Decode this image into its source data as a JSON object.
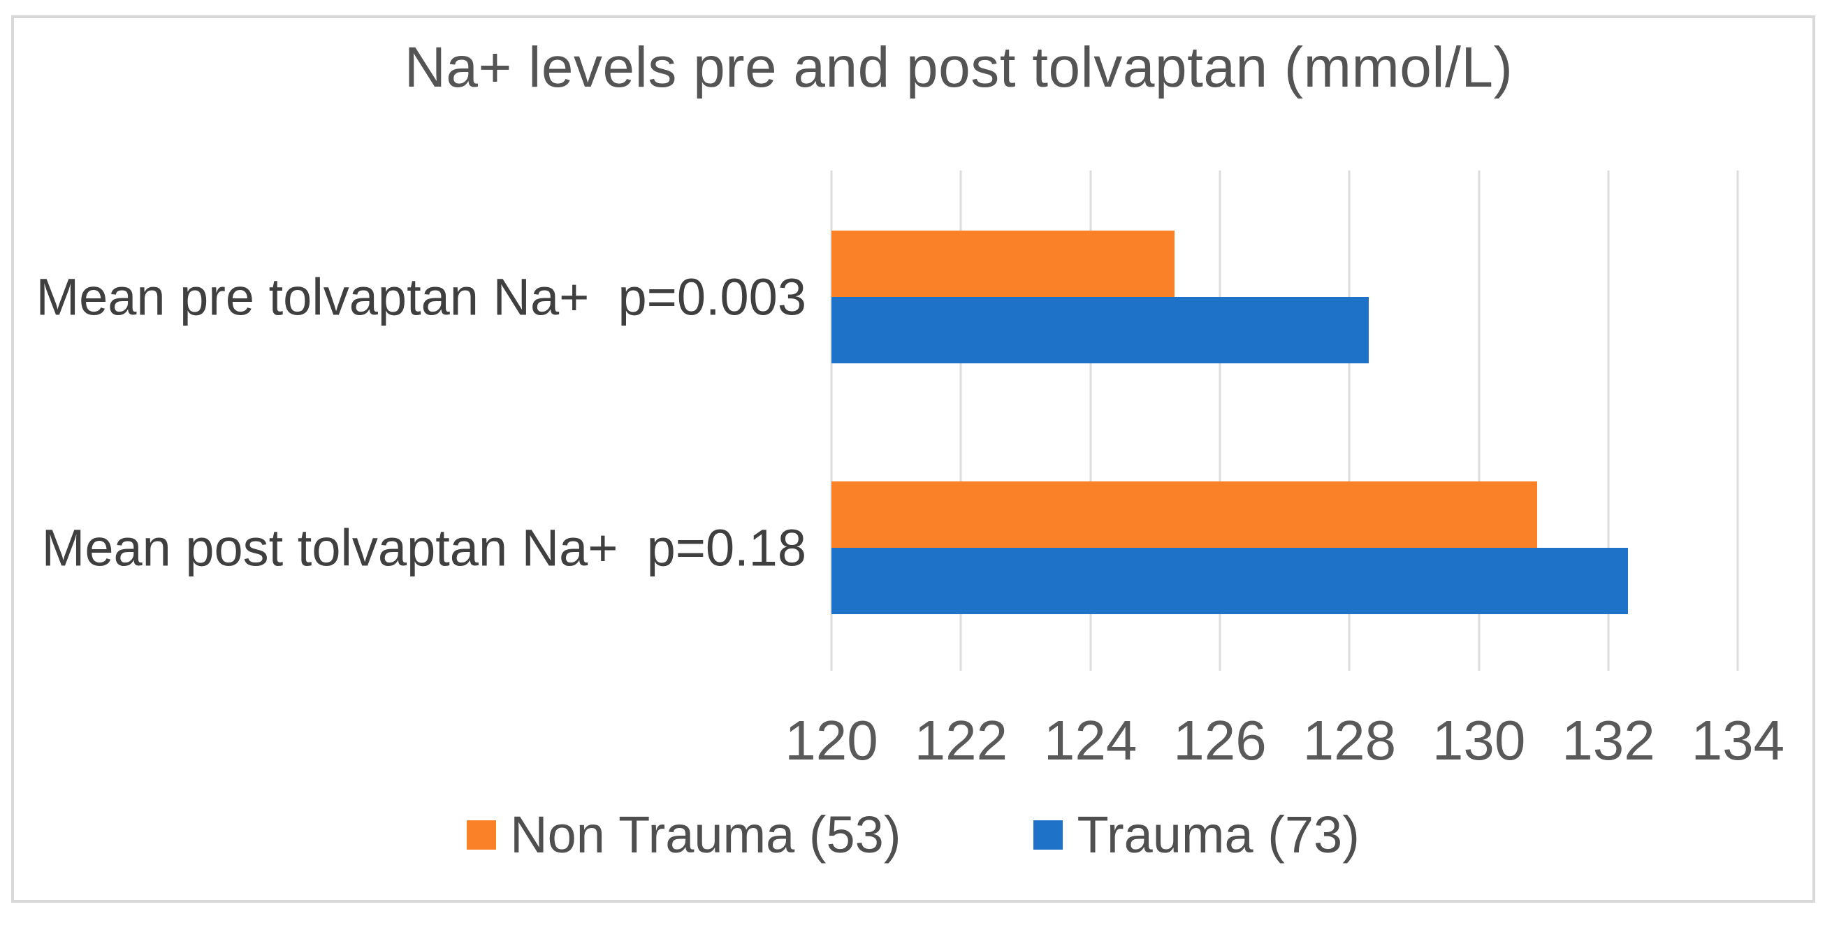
{
  "title": "Na+ levels pre and post tolvaptan (mmol/L)",
  "colors": {
    "non_trauma_orange": "#FA8128",
    "trauma_blue": "#1E73C8",
    "gridline": "#DCDCDC",
    "frame_border": "#D8D8D8",
    "title_text": "#545454",
    "tick_text": "#595959",
    "category_text": "#3F3F3F",
    "legend_text": "#4F4F4F"
  },
  "chart_data": {
    "type": "bar",
    "orientation": "horizontal",
    "title": "Na+ levels pre and post tolvaptan (mmol/L)",
    "units": "mmol/L",
    "categories": [
      "Mean pre tolvaptan Na+  p=0.003",
      "Mean post tolvaptan Na+  p=0.18"
    ],
    "series": [
      {
        "name": "Non Trauma (53)",
        "color": "#FA8128",
        "values": [
          125.3,
          130.9
        ]
      },
      {
        "name": "Trauma (73)",
        "color": "#1E73C8",
        "values": [
          128.3,
          132.3
        ]
      }
    ],
    "xlabel": "",
    "ylabel": "",
    "xlim": [
      120,
      135
    ],
    "xticks": [
      120,
      122,
      124,
      126,
      128,
      130,
      132,
      134
    ],
    "grid": "vertical-only",
    "legend_position": "bottom",
    "bars_start_at": 120
  }
}
